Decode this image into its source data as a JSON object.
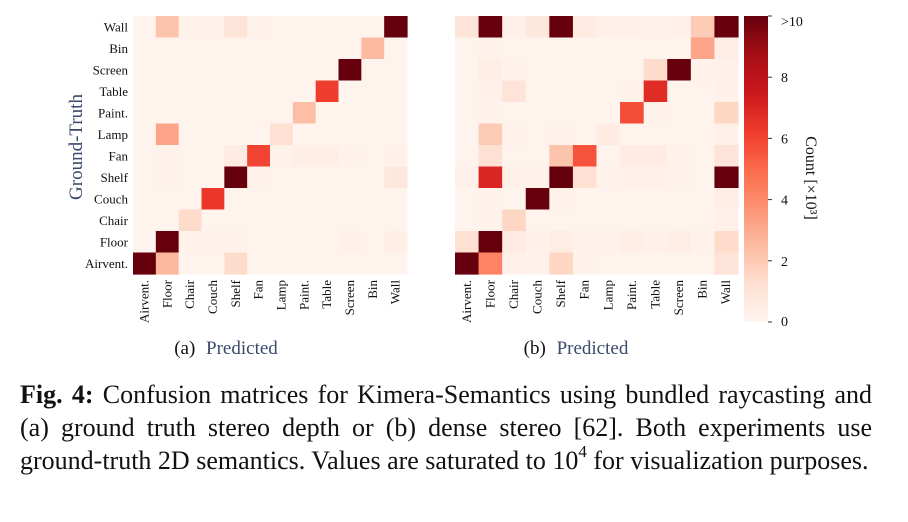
{
  "chart_data": [
    {
      "type": "heatmap",
      "subplot_label": "(a)",
      "xlabel": "Predicted",
      "ylabel": "Ground-Truth",
      "x_categories": [
        "Airvent.",
        "Floor",
        "Chair",
        "Couch",
        "Shelf",
        "Fan",
        "Lamp",
        "Paint.",
        "Table",
        "Screen",
        "Bin",
        "Wall"
      ],
      "y_categories": [
        "Wall",
        "Bin",
        "Screen",
        "Table",
        "Paint.",
        "Lamp",
        "Fan",
        "Shelf",
        "Couch",
        "Chair",
        "Floor",
        "Airvent."
      ],
      "values": [
        [
          0.1,
          2.2,
          0.2,
          0.2,
          1.0,
          0.2,
          0.1,
          0.1,
          0.1,
          0.1,
          0.1,
          10
        ],
        [
          0.1,
          0.1,
          0.1,
          0.1,
          0.1,
          0.1,
          0.1,
          0.1,
          0.1,
          0.1,
          2.5,
          0.1
        ],
        [
          0.1,
          0.1,
          0.1,
          0.1,
          0.1,
          0.1,
          0.1,
          0.1,
          0.1,
          10,
          0.1,
          0.1
        ],
        [
          0.1,
          0.1,
          0.1,
          0.1,
          0.1,
          0.1,
          0.1,
          0.1,
          6.2,
          0.1,
          0.1,
          0.1
        ],
        [
          0.1,
          0.1,
          0.1,
          0.1,
          0.1,
          0.1,
          0.1,
          2.4,
          0.1,
          0.1,
          0.1,
          0.1
        ],
        [
          0.1,
          3.2,
          0.1,
          0.1,
          0.1,
          0.1,
          1.2,
          0.1,
          0.1,
          0.1,
          0.1,
          0.1
        ],
        [
          0.1,
          0.2,
          0.1,
          0.1,
          0.6,
          6.0,
          0.2,
          0.4,
          0.4,
          0.2,
          0.1,
          0.3
        ],
        [
          0.1,
          0.2,
          0.1,
          0.1,
          10,
          0.2,
          0.1,
          0.1,
          0.1,
          0.1,
          0.1,
          0.8
        ],
        [
          0.1,
          0.1,
          0.1,
          6.4,
          0.1,
          0.1,
          0.1,
          0.1,
          0.1,
          0.1,
          0.1,
          0.1
        ],
        [
          0.1,
          0.1,
          1.4,
          0.1,
          0.1,
          0.1,
          0.1,
          0.1,
          0.1,
          0.1,
          0.1,
          0.1
        ],
        [
          0.1,
          10,
          0.2,
          0.2,
          0.2,
          0.1,
          0.1,
          0.1,
          0.1,
          0.3,
          0.1,
          0.4
        ],
        [
          10,
          2.6,
          0.1,
          0.1,
          1.4,
          0.1,
          0.1,
          0.1,
          0.1,
          0.1,
          0.1,
          0.1
        ]
      ]
    },
    {
      "type": "heatmap",
      "subplot_label": "(b)",
      "xlabel": "Predicted",
      "ylabel": "",
      "x_categories": [
        "Airvent.",
        "Floor",
        "Chair",
        "Couch",
        "Shelf",
        "Fan",
        "Lamp",
        "Paint.",
        "Table",
        "Screen",
        "Bin",
        "Wall"
      ],
      "y_categories": [
        "Wall",
        "Bin",
        "Screen",
        "Table",
        "Paint.",
        "Lamp",
        "Fan",
        "Shelf",
        "Couch",
        "Chair",
        "Floor",
        "Airvent."
      ],
      "values": [
        [
          1.0,
          10,
          0.3,
          0.8,
          10,
          0.6,
          0.3,
          0.3,
          0.2,
          0.3,
          2.0,
          10
        ],
        [
          0.1,
          0.2,
          0.1,
          0.1,
          0.1,
          0.1,
          0.1,
          0.1,
          0.1,
          0.1,
          3.2,
          0.4
        ],
        [
          0.1,
          0.4,
          0.2,
          0.1,
          0.1,
          0.1,
          0.1,
          0.1,
          1.4,
          10,
          0.2,
          0.3
        ],
        [
          0.1,
          0.3,
          1.0,
          0.1,
          0.1,
          0.1,
          0.1,
          0.2,
          6.8,
          0.1,
          0.1,
          0.3
        ],
        [
          0.1,
          0.2,
          0.1,
          0.1,
          0.1,
          0.1,
          0.1,
          5.8,
          0.2,
          0.1,
          0.1,
          1.6
        ],
        [
          0.1,
          2.0,
          0.2,
          0.1,
          0.2,
          0.1,
          0.6,
          0.1,
          0.1,
          0.1,
          0.1,
          0.3
        ],
        [
          0.1,
          1.2,
          0.1,
          0.1,
          2.2,
          5.6,
          0.1,
          0.6,
          0.6,
          0.2,
          0.1,
          1.0
        ],
        [
          0.3,
          7.0,
          0.3,
          0.2,
          10,
          1.2,
          0.2,
          0.3,
          0.3,
          0.2,
          0.1,
          10
        ],
        [
          0.1,
          0.2,
          0.1,
          10,
          0.2,
          0.1,
          0.1,
          0.1,
          0.1,
          0.1,
          0.1,
          0.4
        ],
        [
          0.1,
          0.2,
          1.6,
          0.1,
          0.1,
          0.1,
          0.1,
          0.1,
          0.1,
          0.1,
          0.1,
          0.3
        ],
        [
          1.2,
          10,
          0.6,
          0.3,
          0.5,
          0.2,
          0.2,
          0.4,
          0.3,
          0.4,
          0.2,
          1.4
        ],
        [
          10,
          4.2,
          0.3,
          0.2,
          1.6,
          0.2,
          0.1,
          0.1,
          0.1,
          0.1,
          0.1,
          1.0
        ]
      ]
    }
  ],
  "colorbar": {
    "label": "Count [×10³]",
    "ticks": [
      "0",
      "2",
      "4",
      "6",
      "8",
      ">10"
    ],
    "tick_values": [
      0,
      2,
      4,
      6,
      8,
      10
    ],
    "range": [
      0,
      10
    ],
    "colormap": "Reds",
    "color_low": "#fff5f0",
    "color_high": "#67000d"
  },
  "caption": {
    "prefix": "Fig. 4:",
    "text": " Confusion matrices for Kimera-Semantics using bundled raycasting and (a) ground truth stereo depth or (b) dense stereo [62]. Both experiments use ground-truth 2D semantics. Values are saturated to 10",
    "superscript": "4",
    "suffix": " for visualization purposes."
  }
}
